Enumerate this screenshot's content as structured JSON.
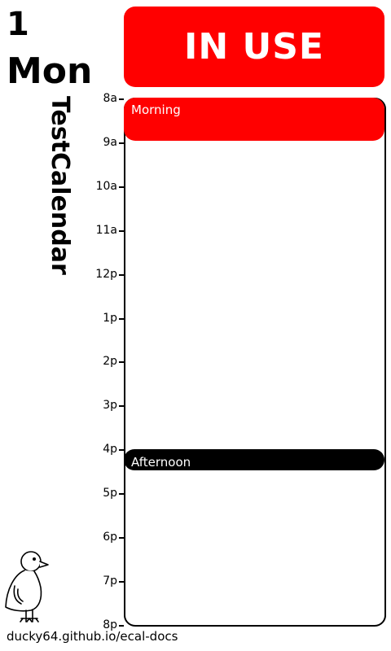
{
  "header": {
    "date_number": "1",
    "day_name": "Mon",
    "calendar_name": "TestCalendar"
  },
  "status": {
    "label": "IN USE",
    "color": "#ff0000"
  },
  "timeline": {
    "hours": [
      "8a",
      "9a",
      "10a",
      "11a",
      "12p",
      "1p",
      "2p",
      "3p",
      "4p",
      "5p",
      "6p",
      "7p",
      "8p"
    ]
  },
  "events": [
    {
      "title": "Morning",
      "color": "#ff0000"
    },
    {
      "title": "Afternoon",
      "color": "#000000"
    }
  ],
  "footer": {
    "url": "ducky64.github.io/ecal-docs"
  },
  "icons": {
    "mascot": "duck-icon"
  }
}
